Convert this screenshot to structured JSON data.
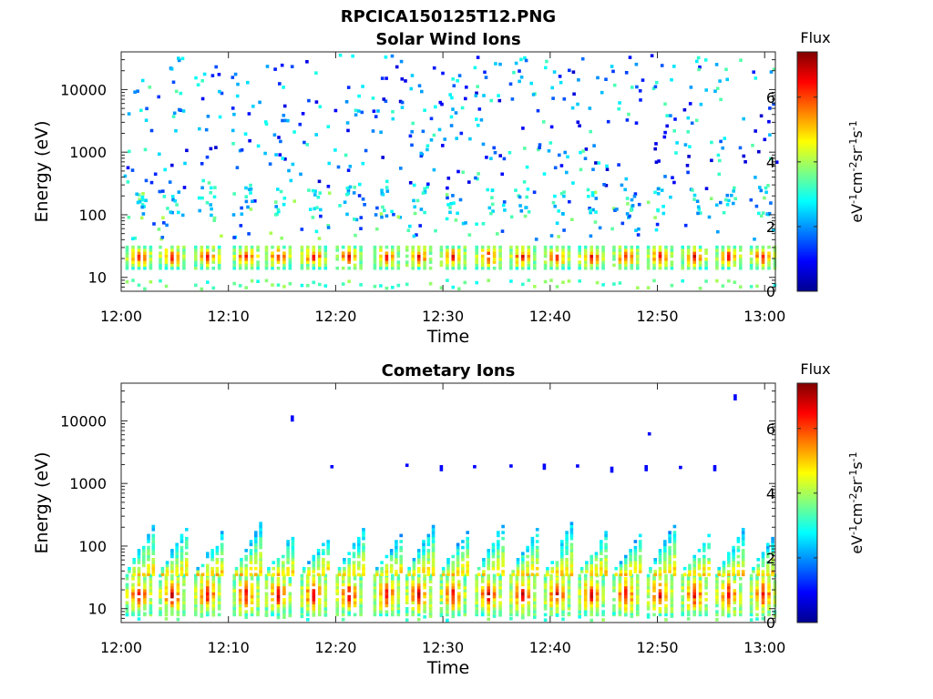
{
  "figure_title": "RPCICA150125T12.PNG",
  "colormap": [
    "#00008f",
    "#0000ff",
    "#0080ff",
    "#00ffff",
    "#80ff80",
    "#ffff00",
    "#ff8000",
    "#ff0000",
    "#800000"
  ],
  "chart_data": [
    {
      "type": "heatmap",
      "title": "Solar Wind Ions",
      "xlabel": "Time",
      "ylabel": "Energy (eV)",
      "yscale": "log",
      "ylim": [
        6,
        40000
      ],
      "xlim": [
        "12:00",
        "13:01"
      ],
      "x_ticks": [
        "12:00",
        "12:10",
        "12:20",
        "12:30",
        "12:40",
        "12:50",
        "13:00"
      ],
      "y_ticks": [
        "10",
        "100",
        "1000",
        "10000"
      ],
      "colorbar": {
        "title": "Flux",
        "label": "eV-1cm-2sr-1s-1",
        "range": [
          0,
          7.4
        ],
        "ticks": [
          "0",
          "2",
          "4",
          "6"
        ]
      },
      "sweep_times_min": [
        1.5,
        4.6,
        7.9,
        11.5,
        14.5,
        17.8,
        21.1,
        24.6,
        27.6,
        30.8,
        34.1,
        37.3,
        40.5,
        43.7,
        46.9,
        50.1,
        53.3,
        56.5,
        59.7
      ],
      "core_band_eV": [
        14,
        32
      ],
      "core_flux_max": 7.2,
      "sparse_flux_range": [
        0.5,
        3.5
      ]
    },
    {
      "type": "heatmap",
      "title": "Cometary Ions",
      "xlabel": "Time",
      "ylabel": "Energy (eV)",
      "yscale": "log",
      "ylim": [
        6,
        40000
      ],
      "xlim": [
        "12:00",
        "13:01"
      ],
      "x_ticks": [
        "12:00",
        "12:10",
        "12:20",
        "12:30",
        "12:40",
        "12:50",
        "13:00"
      ],
      "y_ticks": [
        "10",
        "100",
        "1000",
        "10000"
      ],
      "colorbar": {
        "title": "Flux",
        "label": "eV-1cm-2sr-1s-1",
        "range": [
          0,
          7.4
        ],
        "ticks": [
          "0",
          "2",
          "4",
          "6"
        ]
      },
      "sweep_times_min": [
        1.5,
        4.6,
        7.9,
        11.5,
        14.5,
        17.8,
        21.1,
        24.6,
        27.6,
        30.8,
        34.1,
        37.3,
        40.5,
        43.7,
        46.9,
        50.1,
        53.3,
        56.5,
        59.7
      ],
      "core_band_eV": [
        8,
        35
      ],
      "core_flux_max": 7.3,
      "plume_top_eV": 250,
      "isolated_points": [
        {
          "t": 15.8,
          "e": 11500
        },
        {
          "t": 19.5,
          "e": 1850
        },
        {
          "t": 26.5,
          "e": 1950
        },
        {
          "t": 29.7,
          "e": 1850
        },
        {
          "t": 32.8,
          "e": 1850
        },
        {
          "t": 36.2,
          "e": 1900
        },
        {
          "t": 39.3,
          "e": 1950
        },
        {
          "t": 42.4,
          "e": 1900
        },
        {
          "t": 45.6,
          "e": 1750
        },
        {
          "t": 48.8,
          "e": 1850
        },
        {
          "t": 49.1,
          "e": 6200
        },
        {
          "t": 52.0,
          "e": 1800
        },
        {
          "t": 55.2,
          "e": 1850
        },
        {
          "t": 57.1,
          "e": 25000
        }
      ]
    }
  ]
}
